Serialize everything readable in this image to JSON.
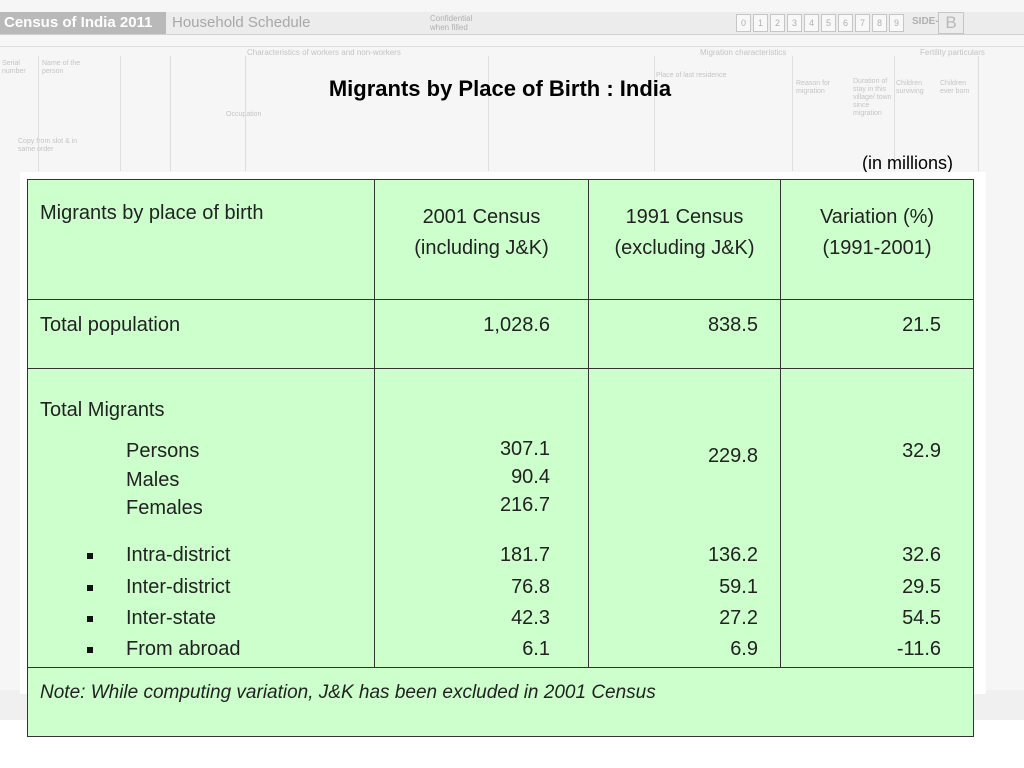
{
  "form": {
    "badge": "Census of India 2011",
    "schedule": "Household Schedule",
    "confidential": "Confidential when filled",
    "digits": [
      "0",
      "1",
      "2",
      "3",
      "4",
      "5",
      "6",
      "7",
      "8",
      "9"
    ],
    "side_label": "SIDE-",
    "side_letter": "B",
    "workers_heading": "Characteristics of workers and non-workers",
    "migration_heading": "Migration characteristics",
    "fertility_heading": "Fertility particulars",
    "serial_label": "Serial number",
    "name_label": "Name of the person",
    "last_residence": "Place of last residence",
    "reason_label": "Reason for migration",
    "duration_label": "Duration of stay in this village/ town since migration",
    "children_surviving": "Children surviving",
    "children_born": "Children ever born",
    "occupation_label": "Occupation",
    "copy_note": "Copy from slot & in same order"
  },
  "slide": {
    "title": "Migrants by Place of Birth : India",
    "units": "(in millions)"
  },
  "table": {
    "headers": {
      "col1": "Migrants by place of birth",
      "col2_line1": "2001 Census",
      "col2_line2": "(including J&K)",
      "col3_line1": "1991 Census",
      "col3_line2": "(excluding J&K)",
      "col4_line1": "Variation (%)",
      "col4_line2": "(1991-2001)"
    },
    "total_population": {
      "label": "Total population",
      "census_2001": "1,028.6",
      "census_1991": "838.5",
      "variation": "21.5"
    },
    "total_migrants": {
      "label": "Total Migrants",
      "persons_label": "Persons",
      "males_label": "Males",
      "females_label": "Females",
      "persons_2001": "307.1",
      "males_2001": "90.4",
      "females_2001": "216.7",
      "census_1991": "229.8",
      "variation": "32.9"
    },
    "categories": [
      {
        "label": "Intra-district",
        "census_2001": "181.7",
        "census_1991": "136.2",
        "variation": "32.6"
      },
      {
        "label": "Inter-district",
        "census_2001": "76.8",
        "census_1991": "59.1",
        "variation": "29.5"
      },
      {
        "label": "Inter-state",
        "census_2001": "42.3",
        "census_1991": "27.2",
        "variation": "54.5"
      },
      {
        "label": "From abroad",
        "census_2001": "6.1",
        "census_1991": "6.9",
        "variation": "-11.6"
      }
    ],
    "note": "Note: While computing variation, J&K has been excluded in 2001 Census"
  },
  "colors": {
    "table_background": "#ccffcc",
    "border": "#333333",
    "form_background": "#f4f4f4"
  }
}
